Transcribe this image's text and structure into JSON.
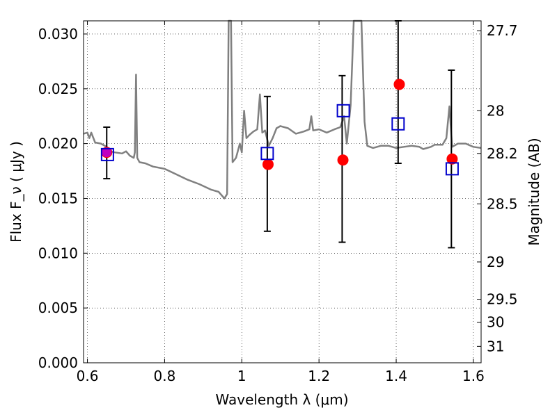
{
  "chart_data": {
    "type": "scatter",
    "title": "",
    "xlabel": "Wavelength  λ (μm)",
    "ylabel": "Flux  F_ν  ( μJy )",
    "ylabel_right": "Magnitude (AB)",
    "xlim": [
      0.59,
      1.62
    ],
    "ylim": [
      0.0,
      0.0312
    ],
    "grid": true,
    "x_ticks": [
      0.6,
      0.8,
      1.0,
      1.2,
      1.4,
      1.6
    ],
    "x_tick_labels": [
      "0.6",
      "0.8",
      "1",
      "1.2",
      "1.4",
      "1.6"
    ],
    "y_ticks": [
      0.0,
      0.005,
      0.01,
      0.015,
      0.02,
      0.025,
      0.03
    ],
    "y_tick_labels": [
      "0.000",
      "0.005",
      "0.010",
      "0.015",
      "0.020",
      "0.025",
      "0.030"
    ],
    "right_ticks": [
      {
        "label": "27.7",
        "flux": 0.0303
      },
      {
        "label": "28",
        "flux": 0.023
      },
      {
        "label": "28.2",
        "flux": 0.0191
      },
      {
        "label": "28.5",
        "flux": 0.0145
      },
      {
        "label": "29",
        "flux": 0.0092
      },
      {
        "label": "29.5",
        "flux": 0.0058
      },
      {
        "label": "30",
        "flux": 0.0037
      },
      {
        "label": "31",
        "flux": 0.0015
      }
    ],
    "series": [
      {
        "type": "line",
        "color": "#808080",
        "points": [
          [
            0.59,
            0.0209
          ],
          [
            0.6,
            0.021
          ],
          [
            0.605,
            0.0205
          ],
          [
            0.61,
            0.021
          ],
          [
            0.62,
            0.0201
          ],
          [
            0.635,
            0.02
          ],
          [
            0.65,
            0.0197
          ],
          [
            0.66,
            0.0193
          ],
          [
            0.67,
            0.0192
          ],
          [
            0.69,
            0.0191
          ],
          [
            0.7,
            0.0193
          ],
          [
            0.71,
            0.0189
          ],
          [
            0.72,
            0.0187
          ],
          [
            0.723,
            0.0192
          ],
          [
            0.726,
            0.0263
          ],
          [
            0.729,
            0.0187
          ],
          [
            0.735,
            0.0183
          ],
          [
            0.75,
            0.0182
          ],
          [
            0.77,
            0.0179
          ],
          [
            0.8,
            0.0177
          ],
          [
            0.83,
            0.0172
          ],
          [
            0.86,
            0.0167
          ],
          [
            0.89,
            0.0163
          ],
          [
            0.92,
            0.0158
          ],
          [
            0.94,
            0.0156
          ],
          [
            0.955,
            0.015
          ],
          [
            0.962,
            0.0154
          ],
          [
            0.966,
            0.0312
          ],
          [
            0.972,
            0.0312
          ],
          [
            0.976,
            0.0183
          ],
          [
            0.985,
            0.0187
          ],
          [
            0.995,
            0.02
          ],
          [
            1.0,
            0.0192
          ],
          [
            1.006,
            0.023
          ],
          [
            1.012,
            0.0205
          ],
          [
            1.02,
            0.0208
          ],
          [
            1.03,
            0.0211
          ],
          [
            1.04,
            0.0213
          ],
          [
            1.047,
            0.0245
          ],
          [
            1.053,
            0.021
          ],
          [
            1.06,
            0.0212
          ],
          [
            1.07,
            0.0198
          ],
          [
            1.08,
            0.0205
          ],
          [
            1.09,
            0.0214
          ],
          [
            1.1,
            0.0216
          ],
          [
            1.12,
            0.0214
          ],
          [
            1.14,
            0.0209
          ],
          [
            1.16,
            0.0211
          ],
          [
            1.175,
            0.0213
          ],
          [
            1.18,
            0.0225
          ],
          [
            1.185,
            0.0212
          ],
          [
            1.2,
            0.0213
          ],
          [
            1.22,
            0.021
          ],
          [
            1.24,
            0.0213
          ],
          [
            1.255,
            0.0215
          ],
          [
            1.265,
            0.0225
          ],
          [
            1.272,
            0.02
          ],
          [
            1.282,
            0.0235
          ],
          [
            1.29,
            0.0312
          ],
          [
            1.3,
            0.0312
          ],
          [
            1.31,
            0.0312
          ],
          [
            1.318,
            0.022
          ],
          [
            1.325,
            0.0198
          ],
          [
            1.34,
            0.0196
          ],
          [
            1.36,
            0.0198
          ],
          [
            1.38,
            0.0198
          ],
          [
            1.4,
            0.0196
          ],
          [
            1.42,
            0.0197
          ],
          [
            1.44,
            0.0198
          ],
          [
            1.46,
            0.0197
          ],
          [
            1.47,
            0.0195
          ],
          [
            1.49,
            0.0197
          ],
          [
            1.5,
            0.0199
          ],
          [
            1.52,
            0.0199
          ],
          [
            1.53,
            0.0205
          ],
          [
            1.538,
            0.0234
          ],
          [
            1.545,
            0.0197
          ],
          [
            1.56,
            0.02
          ],
          [
            1.58,
            0.02
          ],
          [
            1.6,
            0.0197
          ],
          [
            1.62,
            0.0196
          ]
        ]
      },
      {
        "type": "scatter",
        "marker": "circle",
        "color": "#ff0000",
        "points": [
          {
            "x": 0.65,
            "y": 0.0192
          },
          {
            "x": 1.068,
            "y": 0.0181
          },
          {
            "x": 1.262,
            "y": 0.0185
          },
          {
            "x": 1.408,
            "y": 0.0254
          },
          {
            "x": 1.545,
            "y": 0.0186
          }
        ]
      },
      {
        "type": "errorbar",
        "color": "#000000",
        "points": [
          {
            "x": 0.65,
            "lo": 0.0168,
            "hi": 0.0215
          },
          {
            "x": 1.066,
            "lo": 0.012,
            "hi": 0.0243
          },
          {
            "x": 1.26,
            "lo": 0.011,
            "hi": 0.0262
          },
          {
            "x": 1.405,
            "lo": 0.0182,
            "hi": 0.0312
          },
          {
            "x": 1.543,
            "lo": 0.0105,
            "hi": 0.0267
          }
        ]
      },
      {
        "type": "scatter",
        "marker": "square",
        "color": "#0000cc",
        "points": [
          {
            "x": 0.652,
            "y": 0.019
          },
          {
            "x": 1.066,
            "y": 0.0191
          },
          {
            "x": 1.263,
            "y": 0.023
          },
          {
            "x": 1.405,
            "y": 0.0218
          },
          {
            "x": 1.545,
            "y": 0.0177
          }
        ]
      }
    ]
  }
}
